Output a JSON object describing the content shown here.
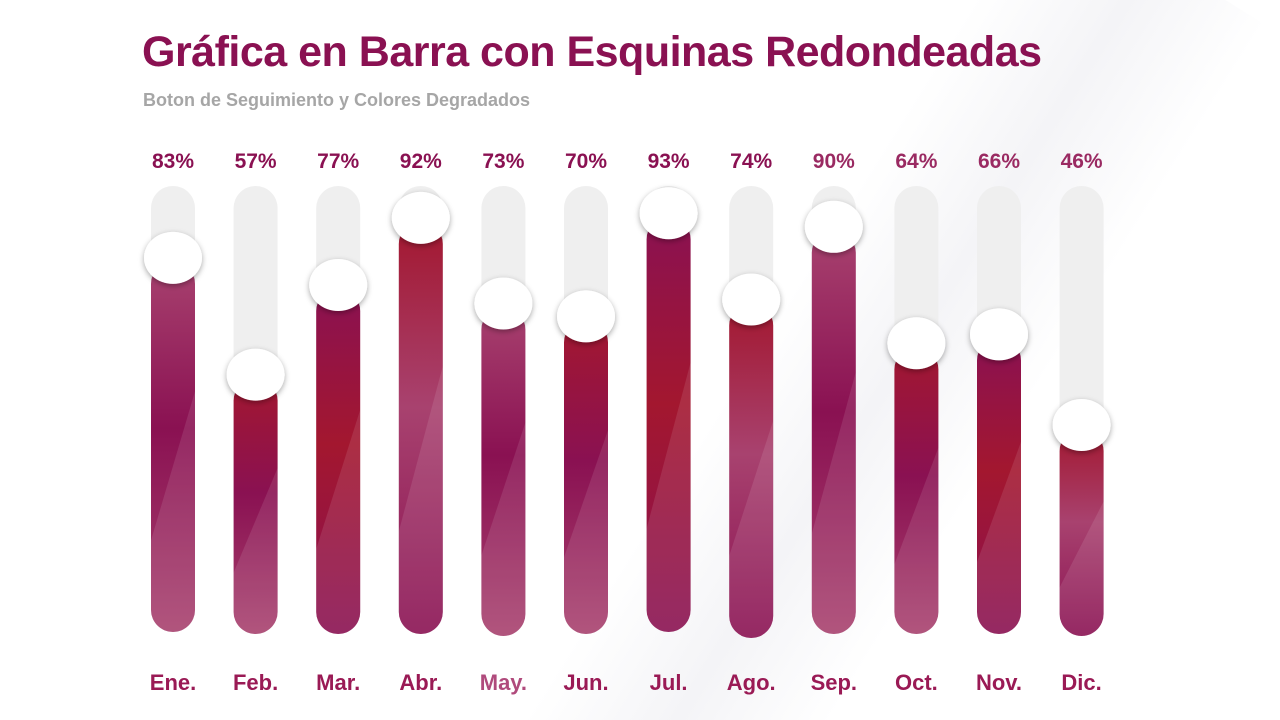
{
  "header": {
    "title": "Gráfica en Barra con Esquinas Redondeadas",
    "subtitle": "Boton de Seguimiento y Colores Degradados"
  },
  "colors": {
    "title": "#8a1152",
    "subtitle": "#a6a6a6",
    "track": "#efefef",
    "bar_dark": "#8a1152",
    "bar_red": "#a3172f",
    "bar_light": "#a8426f",
    "knob": "#ffffff"
  },
  "chart_data": {
    "type": "bar",
    "categories": [
      "Ene.",
      "Feb.",
      "Mar.",
      "Abr.",
      "May.",
      "Jun.",
      "Jul.",
      "Ago.",
      "Sep.",
      "Oct.",
      "Nov.",
      "Dic."
    ],
    "values": [
      83,
      57,
      77,
      92,
      73,
      70,
      93,
      74,
      90,
      64,
      66,
      46
    ],
    "value_labels": [
      "83%",
      "57%",
      "77%",
      "92%",
      "73%",
      "70%",
      "93%",
      "74%",
      "90%",
      "64%",
      "66%",
      "46%"
    ],
    "ylim": [
      0,
      100
    ],
    "unit": "%",
    "grid": false,
    "legend": "none"
  }
}
